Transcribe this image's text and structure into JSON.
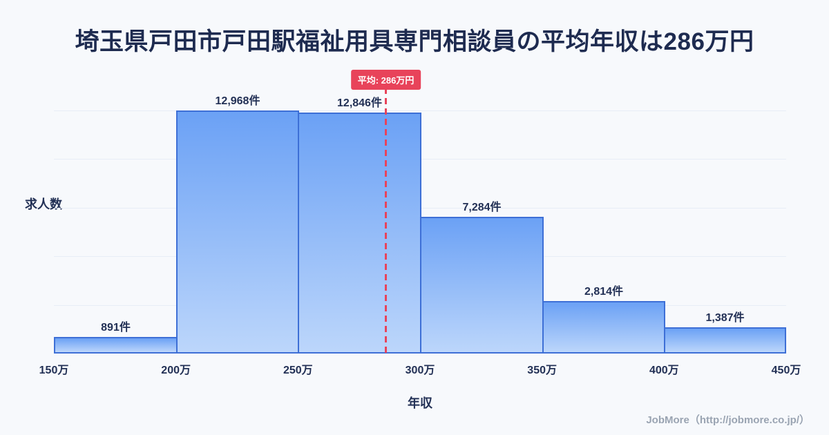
{
  "title": "埼玉県戸田市戸田駅福祉用具専門相談員の平均年収は286万円",
  "footer": "JobMore（http://jobmore.co.jp/）",
  "chart_data": {
    "type": "bar",
    "categories": [
      "150万-200万",
      "200万-250万",
      "250万-300万",
      "300万-350万",
      "350万-400万",
      "400万-450万"
    ],
    "values": [
      891,
      12968,
      12846,
      7284,
      2814,
      1387
    ],
    "bar_labels": [
      "891件",
      "12,968件",
      "12,846件",
      "7,284件",
      "2,814件",
      "1,387件"
    ],
    "x_ticks": [
      "150万",
      "200万",
      "250万",
      "300万",
      "350万",
      "400万",
      "450万"
    ],
    "x_min": 150,
    "x_max": 450,
    "xlabel": "年収",
    "ylabel": "求人数",
    "grid": true,
    "legend": false,
    "average": {
      "value": 286,
      "label": "平均: 286万円"
    },
    "colors": {
      "bar_top": "#6ba1f5",
      "bar_bottom": "#bcd6fb",
      "bar_border": "#3d6fd6",
      "average_line": "#e8435a",
      "badge_bg": "#e8435a",
      "badge_text": "#ffffff",
      "title_text": "#1e2b50",
      "axis_text": "#223055",
      "footer_text": "#9aa4b2",
      "background": "#f7f9fc"
    }
  }
}
